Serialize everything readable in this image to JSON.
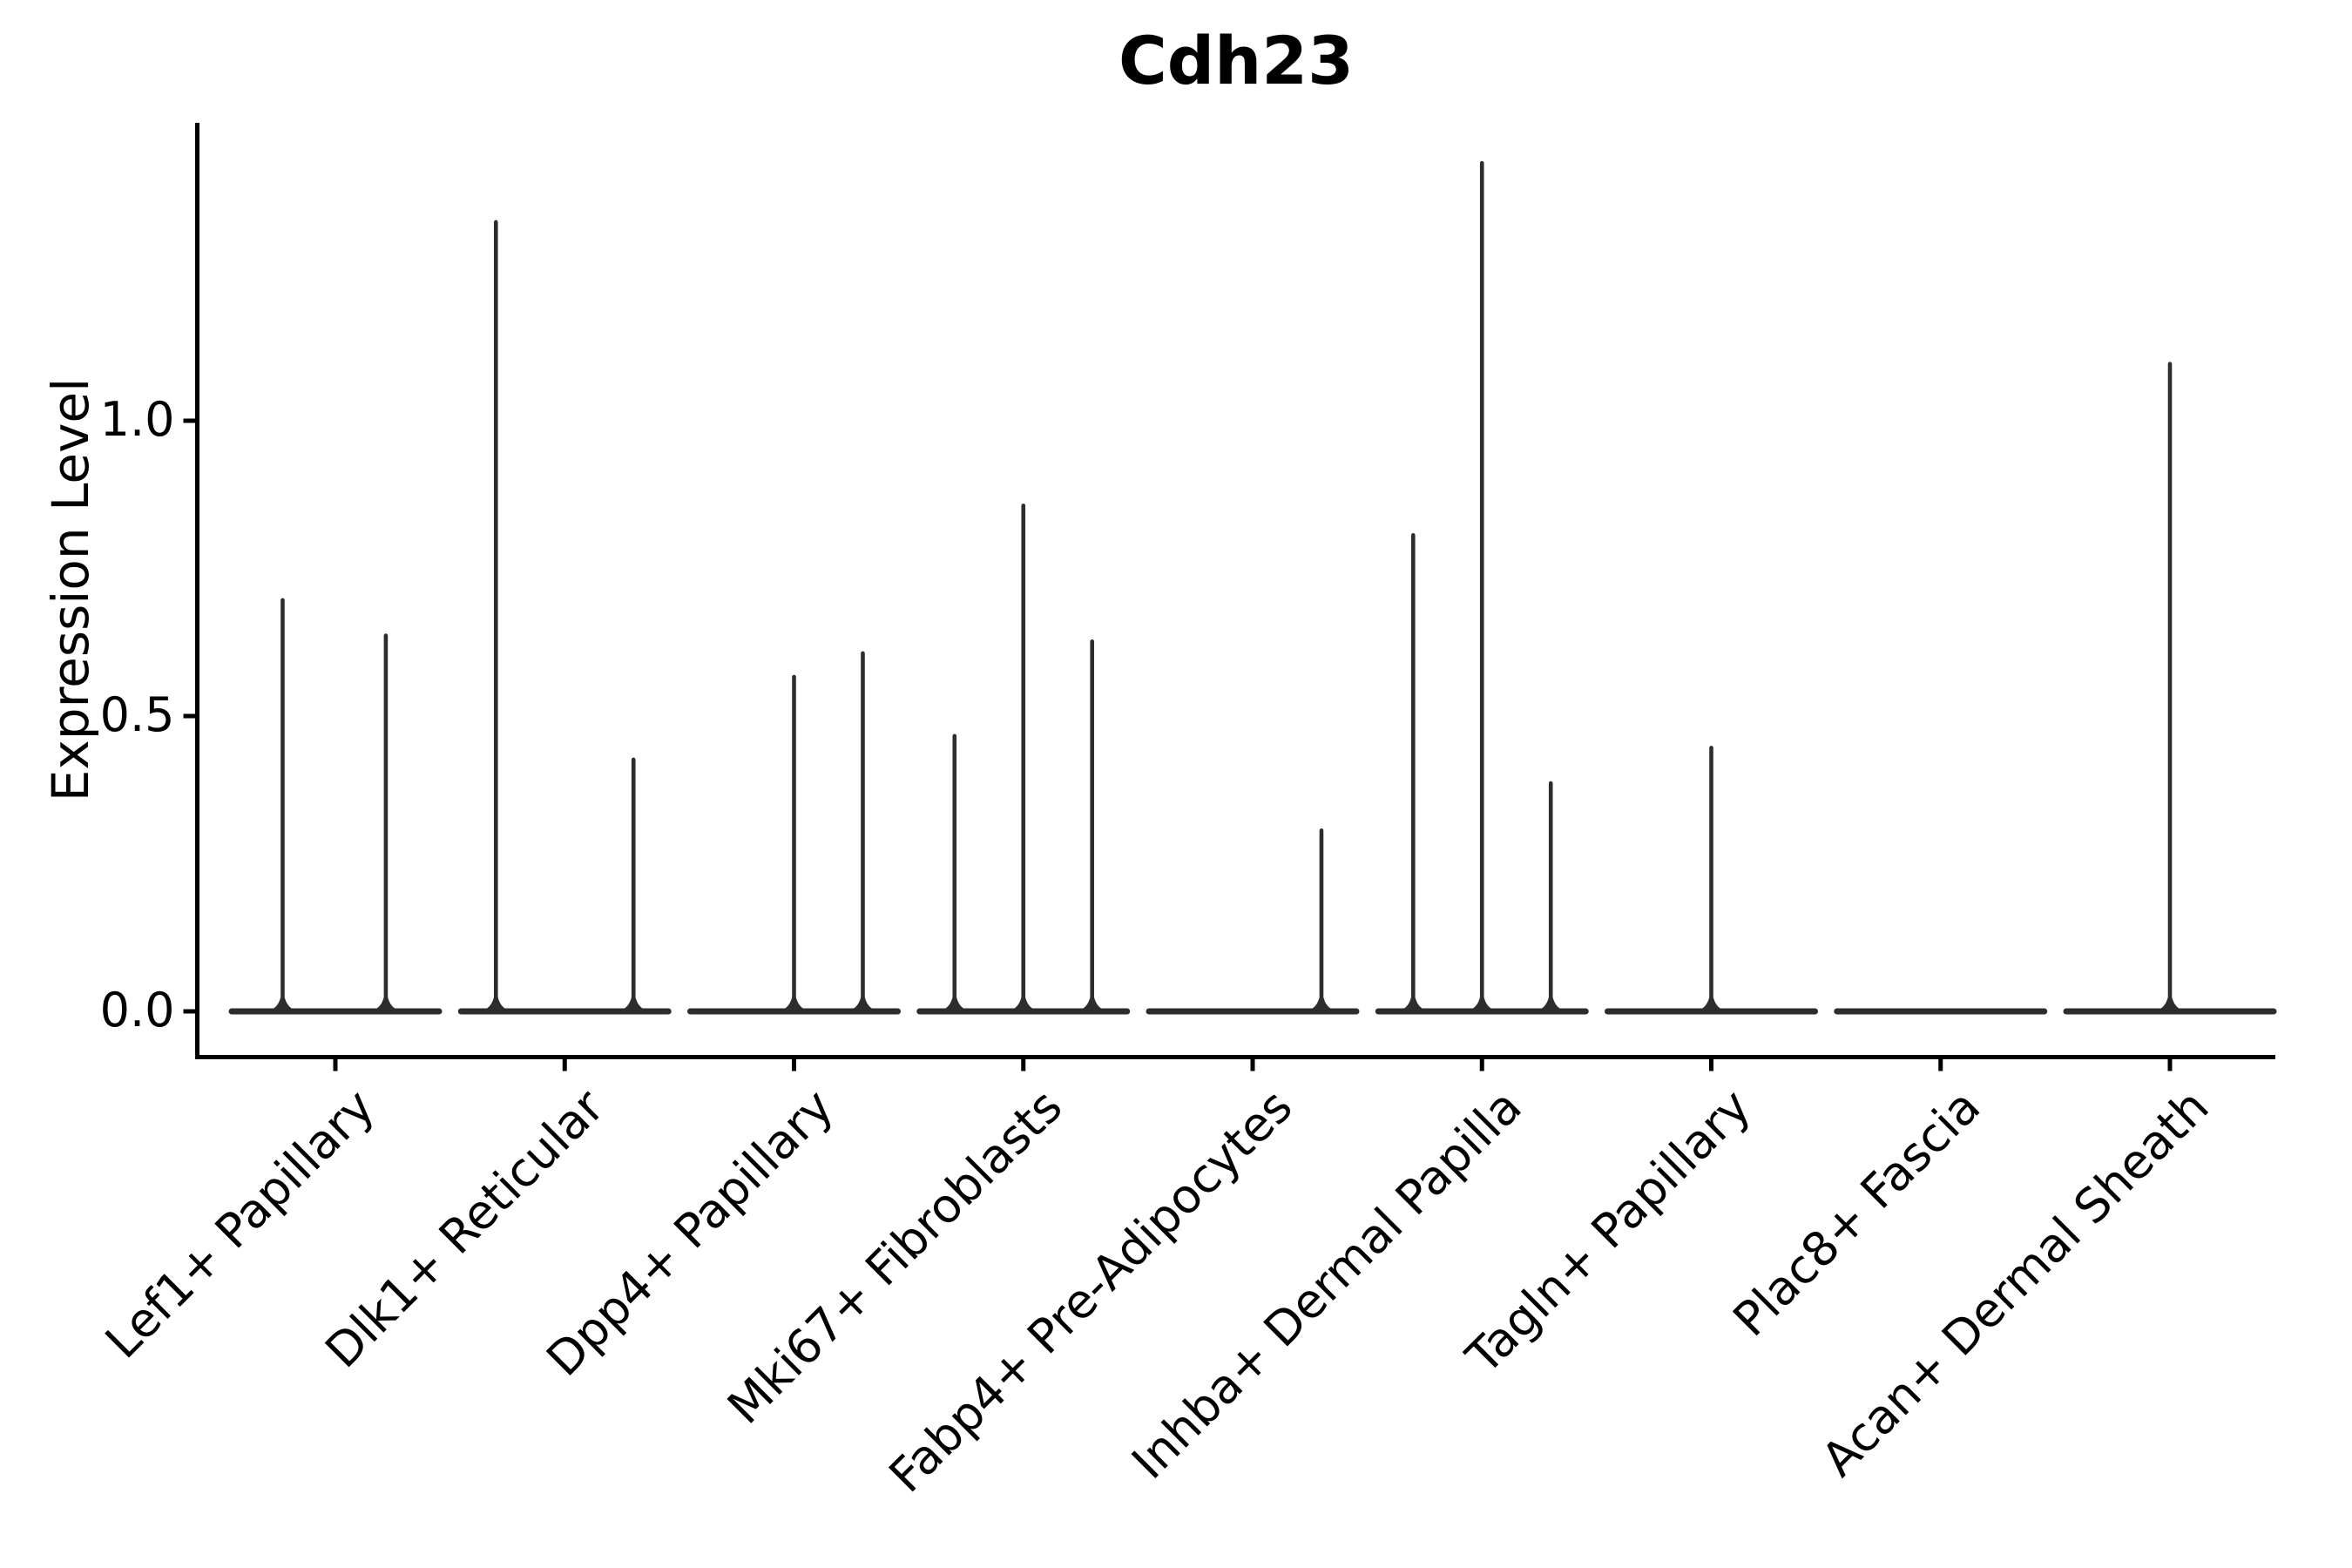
{
  "figure": {
    "title": "Cdh23"
  },
  "chart_data": {
    "type": "violin",
    "title": "Cdh23",
    "ylabel": "Expression Level",
    "xlabel": "",
    "ylim": [
      -0.08,
      1.5
    ],
    "yticks": [
      0.0,
      0.5,
      1.0
    ],
    "ytick_labels": [
      "0.0",
      "0.5",
      "1.0"
    ],
    "grid": false,
    "legend_position": "none",
    "x_tick_rotation": 45,
    "spines": [
      "left",
      "bottom"
    ],
    "categories": [
      "Lef1+ Papillary",
      "Dlk1+ Reticular",
      "Dpp4+ Papillary",
      "Mki67+ Fibroblasts",
      "Fabp4+ Pre-Adipocytes",
      "Inhba+ Dermal Papilla",
      "Tagln+ Papillary",
      "Plac8+ Fascia",
      "Acan+ Dermal Sheath"
    ],
    "series": [
      {
        "category": "Lef1+ Papillary",
        "baseline_value": 0.0,
        "spikes": [
          {
            "pos": -0.23,
            "value": 0.7
          },
          {
            "pos": 0.22,
            "value": 0.64
          }
        ]
      },
      {
        "category": "Dlk1+ Reticular",
        "baseline_value": 0.0,
        "spikes": [
          {
            "pos": -0.3,
            "value": 1.34
          },
          {
            "pos": 0.3,
            "value": 0.43
          }
        ]
      },
      {
        "category": "Dpp4+ Papillary",
        "baseline_value": 0.0,
        "spikes": [
          {
            "pos": 0.0,
            "value": 0.57
          },
          {
            "pos": 0.3,
            "value": 0.61
          }
        ]
      },
      {
        "category": "Mki67+ Fibroblasts",
        "baseline_value": 0.0,
        "spikes": [
          {
            "pos": -0.3,
            "value": 0.47
          },
          {
            "pos": 0.0,
            "value": 0.86
          },
          {
            "pos": 0.3,
            "value": 0.63
          }
        ]
      },
      {
        "category": "Fabp4+ Pre-Adipocytes",
        "baseline_value": 0.0,
        "spikes": [
          {
            "pos": 0.3,
            "value": 0.31
          }
        ]
      },
      {
        "category": "Inhba+ Dermal Papilla",
        "baseline_value": 0.0,
        "spikes": [
          {
            "pos": -0.3,
            "value": 0.81
          },
          {
            "pos": 0.0,
            "value": 1.44
          },
          {
            "pos": 0.3,
            "value": 0.39
          }
        ]
      },
      {
        "category": "Tagln+ Papillary",
        "baseline_value": 0.0,
        "spikes": [
          {
            "pos": 0.0,
            "value": 0.45
          }
        ]
      },
      {
        "category": "Plac8+ Fascia",
        "baseline_value": 0.0,
        "spikes": []
      },
      {
        "category": "Acan+ Dermal Sheath",
        "baseline_value": 0.0,
        "spikes": [
          {
            "pos": 0.0,
            "value": 1.1
          }
        ]
      }
    ],
    "colors": {
      "violin_stroke": "#2d2d2d",
      "axis": "#000000",
      "text": "#000000",
      "background": "#ffffff"
    }
  }
}
